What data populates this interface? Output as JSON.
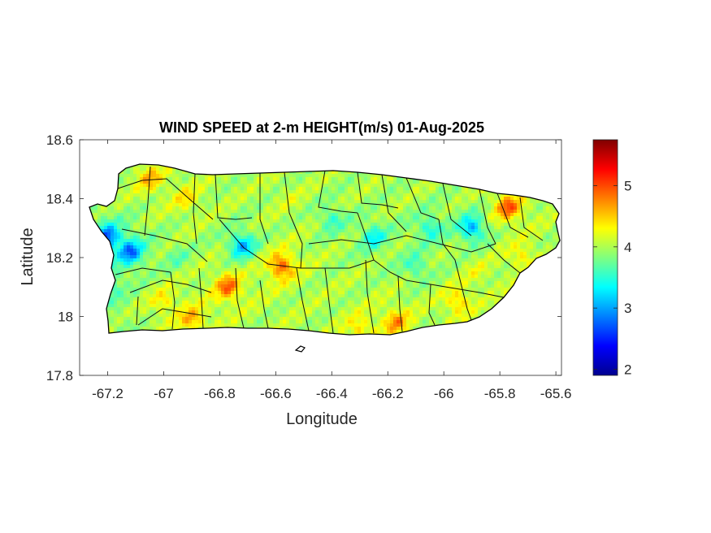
{
  "chart_data": {
    "type": "heatmap",
    "title": "WIND SPEED at 2-m HEIGHT(m/s) 01-Aug-2025",
    "xlabel": "Longitude",
    "ylabel": "Latitude",
    "xlim": [
      -67.3,
      -65.58
    ],
    "ylim": [
      17.8,
      18.6
    ],
    "xticks": [
      -67.2,
      -67,
      -66.8,
      -66.6,
      -66.4,
      -66.2,
      -66,
      -65.8,
      -65.6
    ],
    "xtick_labels": [
      "-67.2",
      "-67",
      "-66.8",
      "-66.6",
      "-66.4",
      "-66.2",
      "-66",
      "-65.8",
      "-65.6"
    ],
    "yticks": [
      17.8,
      18,
      18.2,
      18.4,
      18.6
    ],
    "ytick_labels": [
      "17.8",
      "18",
      "18.2",
      "18.4",
      "18.6"
    ],
    "colormap": "jet",
    "colorbar": {
      "range": [
        1.9,
        5.75
      ],
      "ticks": [
        2,
        3,
        4,
        5
      ],
      "tick_labels": [
        "2",
        "3",
        "4",
        "5"
      ],
      "placement": "right"
    },
    "grid": false,
    "region": "Puerto Rico",
    "hotspots": [
      {
        "lon": -67.2,
        "lat": 18.27,
        "value": 2.0
      },
      {
        "lon": -67.12,
        "lat": 18.22,
        "value": 2.1
      },
      {
        "lon": -67.2,
        "lat": 18.1,
        "value": 3.0
      },
      {
        "lon": -66.72,
        "lat": 18.24,
        "value": 2.5
      },
      {
        "lon": -66.4,
        "lat": 18.33,
        "value": 3.3
      },
      {
        "lon": -66.25,
        "lat": 18.27,
        "value": 3.0
      },
      {
        "lon": -66.05,
        "lat": 18.3,
        "value": 3.1
      },
      {
        "lon": -65.9,
        "lat": 18.3,
        "value": 2.5
      },
      {
        "lon": -66.1,
        "lat": 18.17,
        "value": 3.3
      },
      {
        "lon": -66.95,
        "lat": 18.2,
        "value": 3.6
      },
      {
        "lon": -67.05,
        "lat": 18.47,
        "value": 4.9
      },
      {
        "lon": -66.92,
        "lat": 18.4,
        "value": 4.6
      },
      {
        "lon": -66.58,
        "lat": 18.17,
        "value": 5.5
      },
      {
        "lon": -66.77,
        "lat": 18.1,
        "value": 5.4
      },
      {
        "lon": -66.9,
        "lat": 17.99,
        "value": 5.0
      },
      {
        "lon": -67.0,
        "lat": 18.05,
        "value": 4.6
      },
      {
        "lon": -66.17,
        "lat": 17.98,
        "value": 5.1
      },
      {
        "lon": -66.3,
        "lat": 17.96,
        "value": 4.7
      },
      {
        "lon": -65.95,
        "lat": 18.05,
        "value": 4.8
      },
      {
        "lon": -65.77,
        "lat": 18.37,
        "value": 5.5
      },
      {
        "lon": -65.72,
        "lat": 18.2,
        "value": 4.6
      },
      {
        "lon": -65.88,
        "lat": 18.15,
        "value": 4.3
      },
      {
        "lon": -66.55,
        "lat": 18.4,
        "value": 4.2
      },
      {
        "lon": -66.5,
        "lat": 18.05,
        "value": 4.0
      },
      {
        "lon": -67.15,
        "lat": 17.97,
        "value": 3.8
      }
    ],
    "background_value": 4.0
  }
}
